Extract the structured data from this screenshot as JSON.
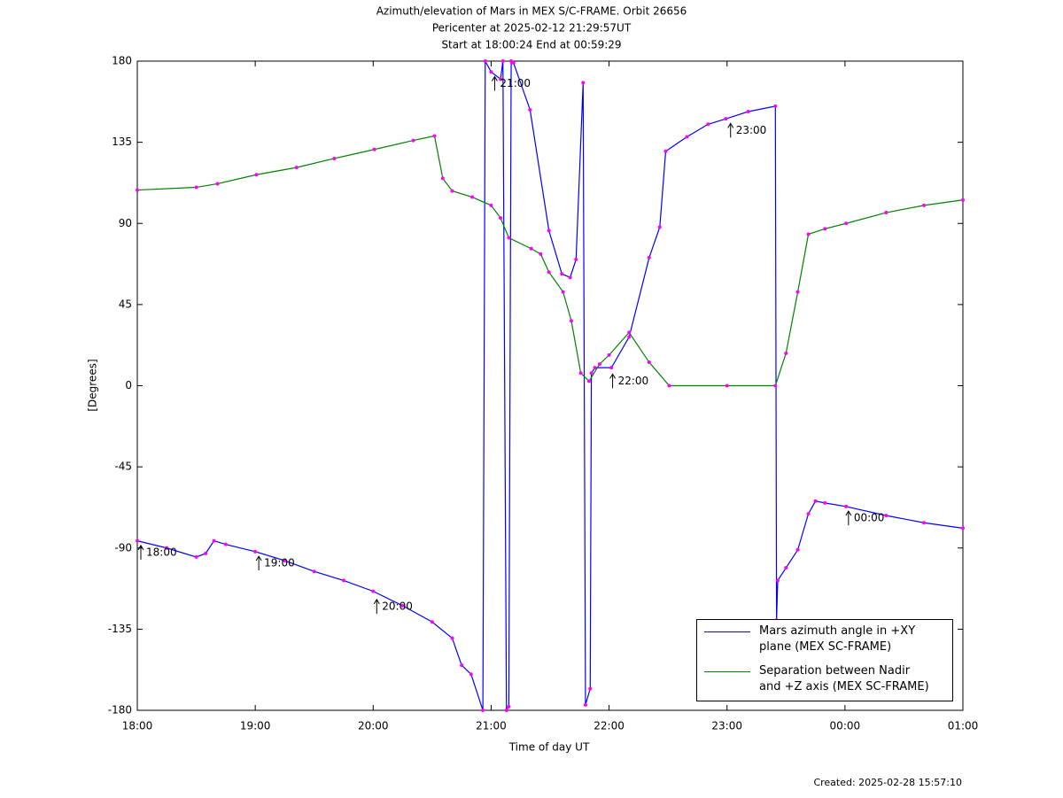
{
  "chart_data": {
    "type": "line",
    "title": [
      "Azimuth/elevation of Mars in MEX S/C-FRAME.  Orbit 26656",
      "Pericenter at 2025-02-12 21:29:57UT",
      "Start at 18:00:24 End at 00:59:29"
    ],
    "x_label": "Time of day UT",
    "y_label": "[Degrees]",
    "footer": "Created: 2025-02-28 15:57:10",
    "xlim": [
      18,
      25
    ],
    "xticks": [
      {
        "value": 18,
        "label": "18:00"
      },
      {
        "value": 19,
        "label": "19:00"
      },
      {
        "value": 20,
        "label": "20:00"
      },
      {
        "value": 21,
        "label": "21:00"
      },
      {
        "value": 22,
        "label": "22:00"
      },
      {
        "value": 23,
        "label": "23:00"
      },
      {
        "value": 24,
        "label": "00:00"
      },
      {
        "value": 25,
        "label": "01:00"
      }
    ],
    "ylim": [
      -180,
      180
    ],
    "yticks": [
      -180,
      -135,
      -90,
      -45,
      0,
      45,
      90,
      135,
      180
    ],
    "grid": false,
    "legend": "bottom-right",
    "marker_color": "#ff00ff",
    "series": [
      {
        "name": "Mars azimuth angle in +XY\nplane (MEX SC-FRAME)",
        "color": "#0000ff",
        "x": [
          18.0,
          18.25,
          18.5,
          18.58,
          18.65,
          18.75,
          19.0,
          19.25,
          19.5,
          19.75,
          20.0,
          20.25,
          20.5,
          20.67,
          20.75,
          20.83,
          20.93,
          20.95,
          21.0,
          21.08,
          21.1,
          21.13,
          21.15,
          21.17,
          21.19,
          21.33,
          21.49,
          21.6,
          21.67,
          21.72,
          21.78,
          21.8,
          21.84,
          21.85,
          21.88,
          22.02,
          22.17,
          22.34,
          22.43,
          22.48,
          22.66,
          22.84,
          22.99,
          23.18,
          23.41,
          23.42,
          23.43,
          23.5,
          23.6,
          23.69,
          23.75,
          23.83,
          24.01,
          24.35,
          24.67,
          25.0
        ],
        "values": [
          -86,
          -90,
          -95,
          -93,
          -86,
          -88,
          -92,
          -97,
          -103,
          -108,
          -114,
          -122,
          -131,
          -140,
          -155,
          -160,
          -180,
          180,
          174,
          170,
          180,
          -180,
          -178,
          180,
          179,
          153,
          86,
          62,
          60,
          70,
          168,
          -177,
          -168,
          7,
          10,
          10,
          27,
          71,
          88,
          130,
          138,
          145,
          148,
          152,
          155,
          -130,
          -108,
          -101,
          -91,
          -71,
          -64,
          -65,
          -67,
          -72,
          -76,
          -79
        ]
      },
      {
        "name": "Separation between Nadir\nand +Z axis (MEX SC-FRAME)",
        "color": "#008000",
        "x": [
          18.0,
          18.5,
          18.68,
          19.01,
          19.35,
          19.67,
          20.01,
          20.34,
          20.52,
          20.59,
          20.67,
          20.84,
          21.0,
          21.08,
          21.15,
          21.34,
          21.42,
          21.49,
          21.61,
          21.68,
          21.76,
          21.83,
          21.92,
          22.0,
          22.17,
          22.34,
          22.51,
          23.0,
          23.41,
          23.5,
          23.6,
          23.69,
          23.83,
          24.01,
          24.35,
          24.67,
          25.0
        ],
        "values": [
          108.5,
          110,
          112,
          117,
          121,
          126,
          131,
          136,
          138.5,
          115,
          108,
          104.6,
          100,
          93,
          82,
          76,
          73,
          63,
          52,
          36,
          7,
          2.5,
          12,
          17,
          29.5,
          13,
          0,
          0,
          0,
          18,
          52,
          84,
          87,
          90,
          96,
          100,
          103
        ]
      }
    ],
    "annotations": [
      {
        "label": "18:00",
        "x": 18,
        "y": -92
      },
      {
        "label": "19:00",
        "x": 19,
        "y": -98
      },
      {
        "label": "20:00",
        "x": 20,
        "y": -122
      },
      {
        "label": "21:00",
        "x": 21,
        "y": 168
      },
      {
        "label": "22:00",
        "x": 22,
        "y": 3
      },
      {
        "label": "23:00",
        "x": 23,
        "y": 142
      },
      {
        "label": "00:00",
        "x": 24,
        "y": -73
      }
    ]
  }
}
